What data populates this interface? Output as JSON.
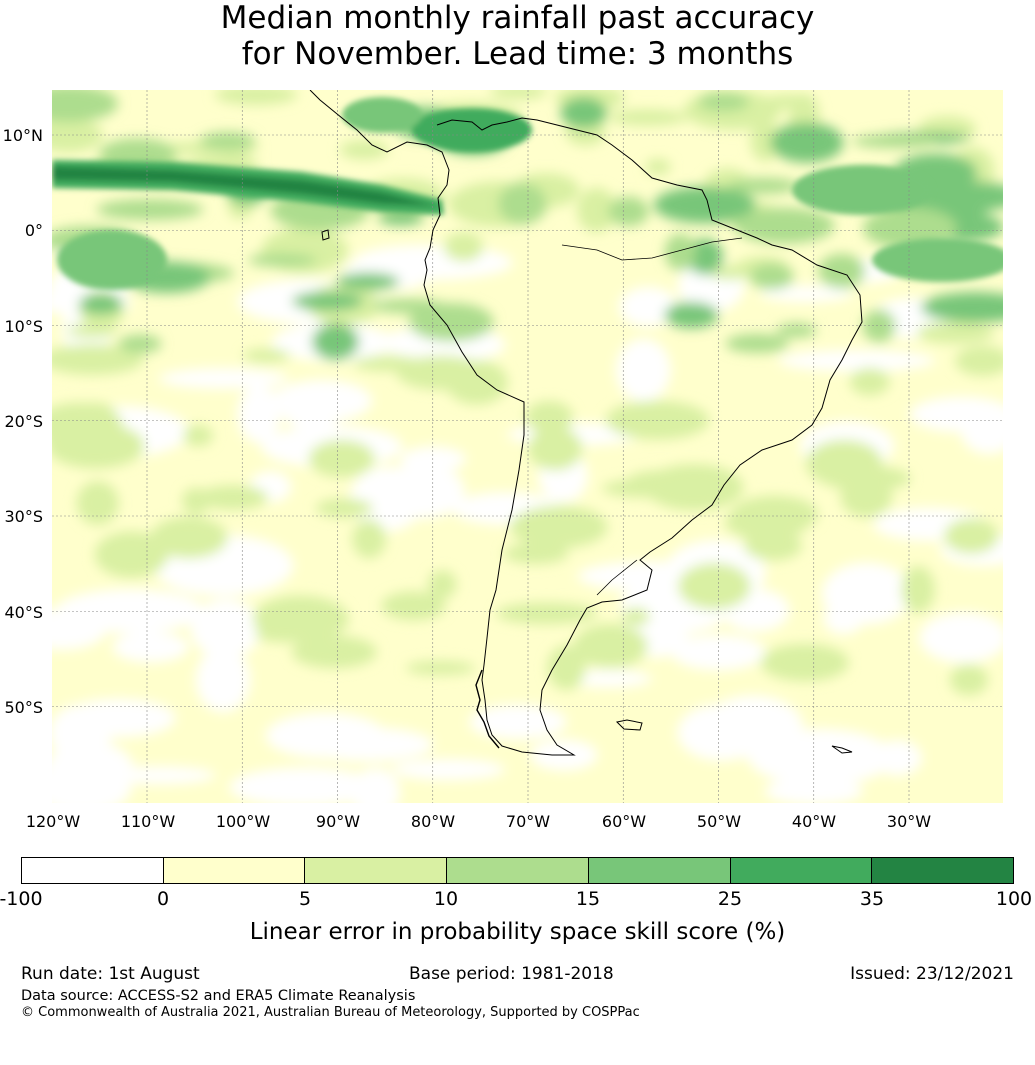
{
  "title": {
    "line1": "Median monthly rainfall past accuracy",
    "line2": "for November. Lead time: 3 months"
  },
  "map": {
    "latitude_labels": [
      "10°N",
      "0°",
      "10°S",
      "20°S",
      "30°S",
      "40°S",
      "50°S"
    ],
    "longitude_labels": [
      "120°W",
      "110°W",
      "100°W",
      "90°W",
      "80°W",
      "70°W",
      "60°W",
      "50°W",
      "40°W",
      "30°W"
    ],
    "gridlines": true,
    "coastline_color": "#000000"
  },
  "colorbar": {
    "tick_labels": [
      "-100",
      "0",
      "5",
      "10",
      "15",
      "25",
      "35",
      "100"
    ],
    "colors": [
      "#ffffff",
      "#ffffcc",
      "#d9f0a3",
      "#addd8e",
      "#78c679",
      "#41ab5d",
      "#238443"
    ],
    "label": "Linear error in probability space skill score (%)"
  },
  "footer": {
    "run_date": "Run date: 1st August",
    "base_period": "Base period: 1981-2018",
    "issued": "Issued: 23/12/2021",
    "data_source": "Data source: ACCESS-S2 and ERA5 Climate Reanalysis",
    "copyright": "© Commonwealth of Australia 2021, Australian Bureau of Meteorology, Supported by COSPPac"
  }
}
